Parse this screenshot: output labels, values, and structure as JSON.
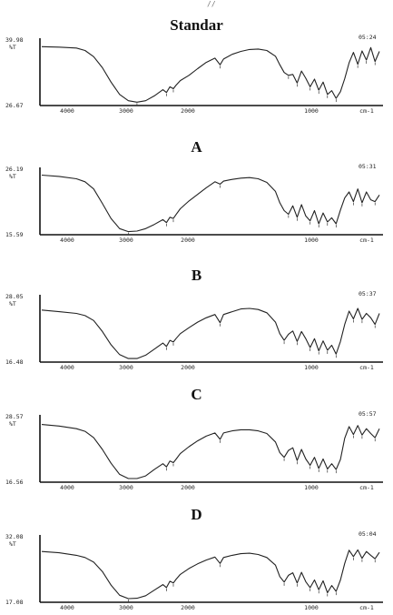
{
  "header_mark": "//",
  "chart_data": [
    {
      "type": "line",
      "title": "Standar",
      "ylabel": "%T",
      "xlabel": "cm-1",
      "y_top_label": "39.98",
      "y_bottom_label": "26.67",
      "ylim": [
        26.67,
        39.98
      ],
      "xlim": [
        4400,
        500
      ],
      "x_ticks": [
        "4000",
        "3000",
        "2000",
        "1000",
        "cm-1"
      ],
      "corner_label": "05:24",
      "grid": false,
      "legend": "none",
      "series": [
        {
          "x": [
            4400,
            4200,
            4000,
            3900,
            3800,
            3700,
            3600,
            3500,
            3400,
            3300,
            3200,
            3100,
            3000,
            2960,
            2920,
            2880,
            2850,
            2800,
            2700,
            2600,
            2500,
            2400,
            2340,
            2300,
            2200,
            2100,
            2000,
            1900,
            1800,
            1700,
            1650,
            1600,
            1550,
            1500,
            1450,
            1400,
            1350,
            1300,
            1250,
            1200,
            1150,
            1100,
            1050,
            1000,
            950,
            900,
            850,
            800,
            750,
            700,
            650,
            600,
            550,
            500
          ],
          "values": [
            38.6,
            38.5,
            38.3,
            37.8,
            36.5,
            34.2,
            31.2,
            28.6,
            27.3,
            27.0,
            27.3,
            28.3,
            29.6,
            29.0,
            30.2,
            29.8,
            30.5,
            31.5,
            32.6,
            34.0,
            35.3,
            36.2,
            34.8,
            36.0,
            37.0,
            37.6,
            38.0,
            38.1,
            37.8,
            36.6,
            34.8,
            33.2,
            32.6,
            32.8,
            31.0,
            33.5,
            32.0,
            30.2,
            31.8,
            29.5,
            31.2,
            28.6,
            29.4,
            27.8,
            29.2,
            31.9,
            35.2,
            37.4,
            34.9,
            37.7,
            35.8,
            38.4,
            35.5,
            37.6
          ]
        }
      ]
    },
    {
      "type": "line",
      "title": "A",
      "ylabel": "%T",
      "xlabel": "cm-1",
      "y_top_label": "26.19",
      "y_bottom_label": "15.59",
      "ylim": [
        15.59,
        26.19
      ],
      "xlim": [
        4400,
        500
      ],
      "x_ticks": [
        "4000",
        "3000",
        "2000",
        "1000",
        "cm-1"
      ],
      "corner_label": "05:31",
      "grid": false,
      "legend": "none",
      "series": [
        {
          "x": [
            4400,
            4200,
            4000,
            3900,
            3800,
            3700,
            3600,
            3500,
            3400,
            3300,
            3200,
            3100,
            3000,
            2960,
            2920,
            2880,
            2850,
            2800,
            2700,
            2600,
            2500,
            2400,
            2340,
            2300,
            2200,
            2100,
            2000,
            1900,
            1800,
            1700,
            1650,
            1600,
            1550,
            1500,
            1450,
            1400,
            1350,
            1300,
            1250,
            1200,
            1150,
            1100,
            1050,
            1000,
            950,
            900,
            850,
            800,
            750,
            700,
            650,
            600,
            550,
            500
          ],
          "values": [
            25.2,
            25.0,
            24.6,
            24.1,
            22.9,
            20.5,
            18.0,
            16.3,
            15.8,
            15.9,
            16.3,
            17.0,
            17.8,
            17.3,
            18.2,
            18.0,
            18.6,
            19.6,
            20.9,
            22.0,
            23.1,
            24.1,
            23.7,
            24.2,
            24.5,
            24.7,
            24.8,
            24.6,
            24.0,
            22.5,
            20.6,
            19.3,
            18.7,
            20.1,
            18.2,
            20.3,
            18.4,
            17.6,
            19.3,
            17.1,
            18.9,
            17.4,
            18.1,
            17.1,
            19.4,
            21.4,
            22.4,
            20.8,
            22.9,
            20.6,
            22.4,
            21.1,
            20.8,
            21.9
          ]
        }
      ]
    },
    {
      "type": "line",
      "title": "B",
      "ylabel": "%T",
      "xlabel": "cm-1",
      "y_top_label": "28.05",
      "y_bottom_label": "16.48",
      "ylim": [
        16.48,
        28.05
      ],
      "xlim": [
        4400,
        500
      ],
      "x_ticks": [
        "4000",
        "3000",
        "2000",
        "1000",
        "cm-1"
      ],
      "corner_label": "05:37",
      "grid": false,
      "legend": "none",
      "series": [
        {
          "x": [
            4400,
            4200,
            4000,
            3900,
            3800,
            3700,
            3600,
            3500,
            3400,
            3300,
            3200,
            3100,
            3000,
            2960,
            2920,
            2880,
            2850,
            2800,
            2700,
            2600,
            2500,
            2400,
            2340,
            2300,
            2200,
            2100,
            2000,
            1900,
            1800,
            1700,
            1650,
            1600,
            1550,
            1500,
            1450,
            1400,
            1350,
            1300,
            1250,
            1200,
            1150,
            1100,
            1050,
            1000,
            950,
            900,
            850,
            800,
            750,
            700,
            650,
            600,
            550,
            500
          ],
          "values": [
            25.6,
            25.3,
            25.0,
            24.6,
            23.7,
            21.7,
            19.3,
            17.5,
            16.8,
            16.8,
            17.4,
            18.5,
            19.6,
            19.0,
            20.1,
            19.8,
            20.4,
            21.3,
            22.4,
            23.4,
            24.2,
            24.8,
            23.3,
            24.8,
            25.3,
            25.8,
            25.9,
            25.7,
            25.1,
            23.4,
            21.3,
            20.1,
            21.2,
            21.8,
            19.9,
            21.7,
            20.4,
            18.8,
            20.4,
            18.2,
            20.0,
            18.3,
            19.2,
            17.6,
            19.9,
            23.0,
            25.4,
            24.0,
            25.9,
            23.9,
            25.0,
            24.2,
            23.0,
            25.0
          ]
        }
      ]
    },
    {
      "type": "line",
      "title": "C",
      "ylabel": "%T",
      "xlabel": "cm-1",
      "y_top_label": "28.57",
      "y_bottom_label": "16.56",
      "ylim": [
        16.56,
        28.57
      ],
      "xlim": [
        4400,
        500
      ],
      "x_ticks": [
        "4000",
        "3000",
        "2000",
        "1000",
        "cm-1"
      ],
      "corner_label": "05:57",
      "grid": false,
      "legend": "none",
      "series": [
        {
          "x": [
            4400,
            4200,
            4000,
            3900,
            3800,
            3700,
            3600,
            3500,
            3400,
            3300,
            3200,
            3100,
            3000,
            2960,
            2920,
            2880,
            2850,
            2800,
            2700,
            2600,
            2500,
            2400,
            2340,
            2300,
            2200,
            2100,
            2000,
            1900,
            1800,
            1700,
            1650,
            1600,
            1550,
            1500,
            1450,
            1400,
            1350,
            1300,
            1250,
            1200,
            1150,
            1100,
            1050,
            1000,
            950,
            900,
            850,
            800,
            750,
            700,
            650,
            600,
            550,
            500
          ],
          "values": [
            27.1,
            26.8,
            26.3,
            25.8,
            24.6,
            22.4,
            19.8,
            17.7,
            16.9,
            16.9,
            17.4,
            18.6,
            19.7,
            19.1,
            20.2,
            19.9,
            20.5,
            21.6,
            22.9,
            24.0,
            24.9,
            25.5,
            24.3,
            25.5,
            25.9,
            26.1,
            26.1,
            25.9,
            25.4,
            23.8,
            21.8,
            20.9,
            22.2,
            22.7,
            20.3,
            22.4,
            20.6,
            19.4,
            20.9,
            18.8,
            20.6,
            18.7,
            19.7,
            18.6,
            20.5,
            24.5,
            26.7,
            25.2,
            26.9,
            25.1,
            26.3,
            25.4,
            24.6,
            26.3
          ]
        }
      ]
    },
    {
      "type": "line",
      "title": "D",
      "ylabel": "%T",
      "xlabel": "cm-1",
      "y_top_label": "32.08",
      "y_bottom_label": "17.08",
      "ylim": [
        17.08,
        32.08
      ],
      "xlim": [
        4400,
        500
      ],
      "x_ticks": [
        "4000",
        "3000",
        "2000",
        "1000",
        "cm-1"
      ],
      "corner_label": "05:04",
      "grid": false,
      "legend": "none",
      "series": [
        {
          "x": [
            4400,
            4200,
            4000,
            3900,
            3800,
            3700,
            3600,
            3500,
            3400,
            3300,
            3200,
            3100,
            3000,
            2960,
            2920,
            2880,
            2850,
            2800,
            2700,
            2600,
            2500,
            2400,
            2340,
            2300,
            2200,
            2100,
            2000,
            1900,
            1800,
            1700,
            1650,
            1600,
            1550,
            1500,
            1450,
            1400,
            1350,
            1300,
            1250,
            1200,
            1150,
            1100,
            1050,
            1000,
            950,
            900,
            850,
            800,
            750,
            700,
            650,
            600,
            550,
            500
          ],
          "values": [
            28.6,
            28.3,
            27.7,
            27.2,
            26.1,
            23.9,
            20.7,
            18.3,
            17.5,
            17.6,
            18.2,
            19.5,
            20.8,
            20.1,
            21.6,
            21.2,
            22.0,
            23.2,
            24.6,
            25.7,
            26.6,
            27.3,
            25.8,
            27.2,
            27.7,
            28.1,
            28.2,
            27.9,
            27.2,
            25.4,
            22.7,
            21.4,
            23.0,
            23.6,
            21.2,
            23.7,
            21.5,
            20.1,
            21.9,
            19.6,
            21.7,
            18.9,
            20.6,
            19.2,
            21.9,
            25.8,
            28.9,
            27.4,
            29.0,
            27.0,
            28.6,
            27.7,
            26.9,
            28.4
          ]
        }
      ]
    }
  ]
}
